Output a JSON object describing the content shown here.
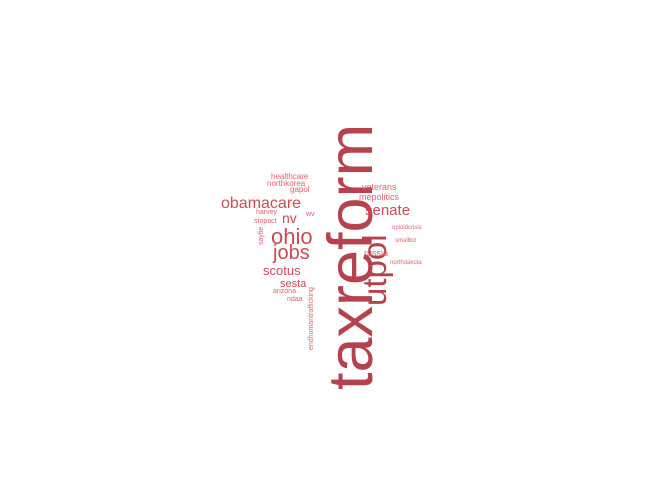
{
  "colors": {
    "dark": "#b5434d",
    "mid": "#cc4b55",
    "light": "#e0656f"
  },
  "words": {
    "taxreform": "taxreform",
    "utpol": "utpol",
    "ohio": "ohio",
    "jobs": "jobs",
    "obamacare": "obamacare",
    "senate": "senate",
    "nv": "nv",
    "scotus": "scotus",
    "sesta": "sesta",
    "russia": "russia",
    "mepolitics": "mepolitics",
    "veterans": "veterans",
    "healthcare": "healthcare",
    "northkorea": "northkorea",
    "gapol": "gapol",
    "harvey": "harvey",
    "stopact": "stopact",
    "wv": "wv",
    "sayfie": "sayfie",
    "arizona": "arizona",
    "ndaa": "ndaa",
    "opioidcrisis": "opioidcrisis",
    "smallbiz": "smallbiz",
    "northdakota": "northdakota",
    "endhumantrafficking": "endhumantrafficking"
  }
}
